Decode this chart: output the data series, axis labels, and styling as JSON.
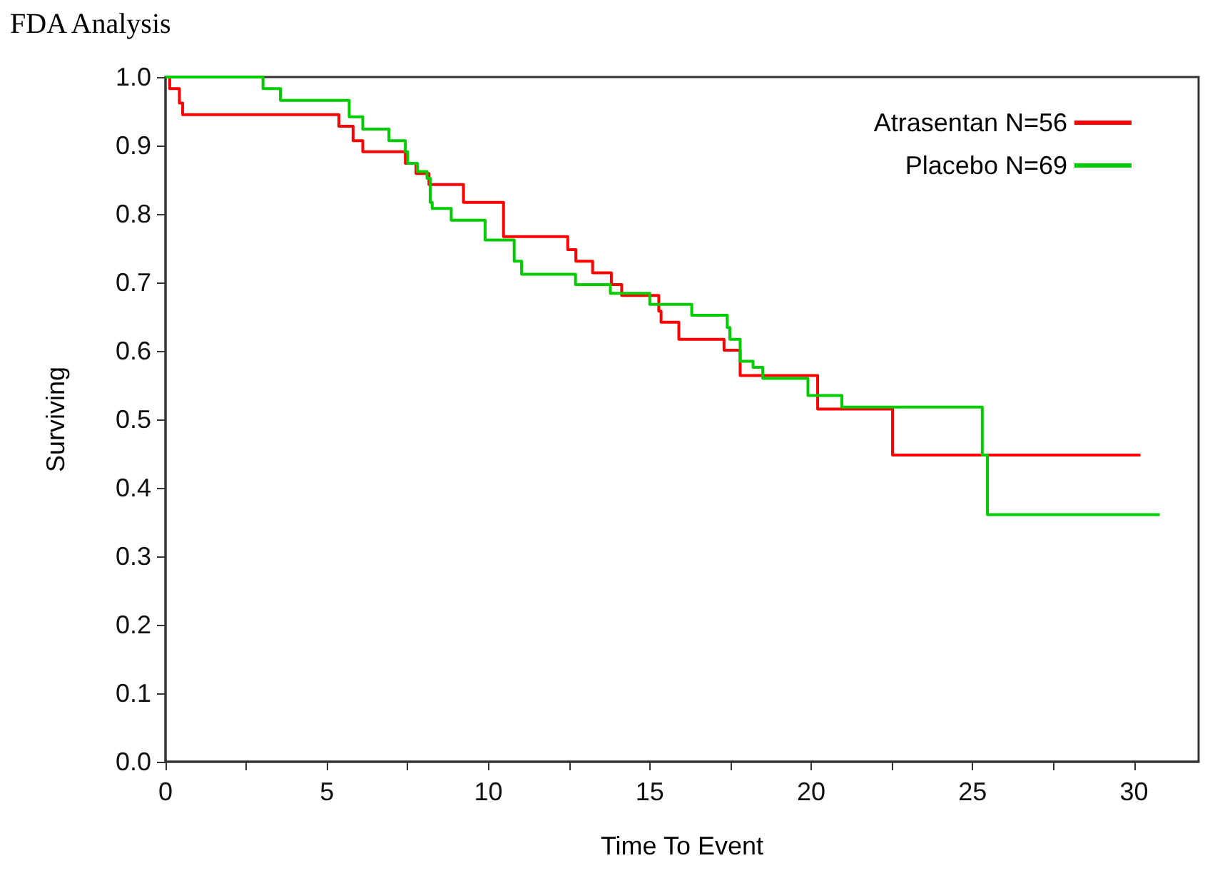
{
  "chart_data": {
    "type": "step",
    "title": "FDA Analysis",
    "xlabel": "Time To Event",
    "ylabel": "Surviving",
    "series": [
      {
        "name": "Atrasentan N=56",
        "color": "#ff0000",
        "x": [
          0,
          0.13,
          0.43,
          0.53,
          5.37,
          5.81,
          6.11,
          7.43,
          7.76,
          8.16,
          9.23,
          10.47,
          12.46,
          12.71,
          13.23,
          13.81,
          14.13,
          15.28,
          15.35,
          15.9,
          17.3,
          17.8,
          20.2,
          22.52,
          30.2
        ],
        "values": [
          1,
          0.983,
          0.962,
          0.945,
          0.928,
          0.907,
          0.891,
          0.874,
          0.859,
          0.843,
          0.817,
          0.767,
          0.748,
          0.731,
          0.714,
          0.697,
          0.681,
          0.658,
          0.642,
          0.617,
          0.601,
          0.564,
          0.515,
          0.448,
          0.448
        ]
      },
      {
        "name": "Placebo N=69",
        "color": "#00cc00",
        "x": [
          0,
          3.02,
          3.56,
          5.69,
          6.11,
          6.92,
          7.43,
          7.5,
          7.8,
          8.1,
          8.2,
          8.26,
          8.85,
          9.9,
          10.8,
          11.03,
          12.7,
          13.78,
          15.0,
          16.3,
          17.4,
          17.48,
          17.8,
          18.2,
          18.5,
          19.9,
          20.95,
          25.3,
          25.46,
          30.8
        ],
        "values": [
          1,
          0.983,
          0.966,
          0.942,
          0.924,
          0.907,
          0.891,
          0.874,
          0.862,
          0.852,
          0.817,
          0.808,
          0.791,
          0.762,
          0.731,
          0.712,
          0.697,
          0.684,
          0.668,
          0.652,
          0.634,
          0.617,
          0.585,
          0.576,
          0.56,
          0.535,
          0.518,
          0.448,
          0.361,
          0.361
        ]
      }
    ],
    "xlim": [
      0,
      32
    ],
    "xticks": [
      0,
      {
        "value": 2.5,
        "label": null
      },
      5,
      {
        "value": 7.5,
        "label": null
      },
      10,
      {
        "value": 12.5,
        "label": null
      },
      15,
      {
        "value": 17.5,
        "label": null
      },
      20,
      {
        "value": 22.5,
        "label": null
      },
      25,
      {
        "value": 27.5,
        "label": null
      },
      30
    ],
    "ylim": [
      0,
      1
    ],
    "yticks": [
      {
        "value": 0,
        "label": "0.0"
      },
      {
        "value": 0.1,
        "label": "0.1"
      },
      {
        "value": 0.2,
        "label": "0.2"
      },
      {
        "value": 0.3,
        "label": "0.3"
      },
      {
        "value": 0.4,
        "label": "0.4"
      },
      {
        "value": 0.5,
        "label": "0.5"
      },
      {
        "value": 0.6,
        "label": "0.6"
      },
      {
        "value": 0.7,
        "label": "0.7"
      },
      {
        "value": 0.8,
        "label": "0.8"
      },
      {
        "value": 0.9,
        "label": "0.9"
      },
      {
        "value": 1,
        "label": "1.0"
      }
    ],
    "grid": false,
    "legend": "top right",
    "marker": "none",
    "line_style": "solid"
  }
}
